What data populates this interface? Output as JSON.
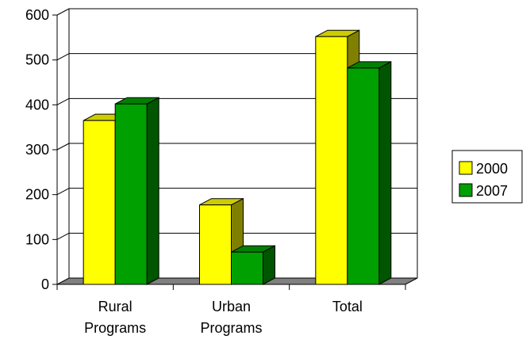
{
  "chart_data": {
    "type": "bar",
    "style": "3d-clustered-column",
    "categories": [
      [
        "Rural",
        "Programs"
      ],
      [
        "Urban",
        "Programs"
      ],
      [
        "Total"
      ]
    ],
    "series": [
      {
        "name": "2000",
        "values": [
          365,
          177,
          552
        ],
        "color": "#ffff00",
        "top_color": "#cccc00",
        "side_color": "#808000"
      },
      {
        "name": "2007",
        "values": [
          402,
          72,
          482
        ],
        "color": "#00a000",
        "top_color": "#008000",
        "side_color": "#005500"
      }
    ],
    "yticks": [
      "0",
      "100",
      "200",
      "300",
      "400",
      "500",
      "600"
    ],
    "ylim": [
      0,
      600
    ],
    "grid": true,
    "legend_position": "right",
    "floor_color": "#808080"
  }
}
